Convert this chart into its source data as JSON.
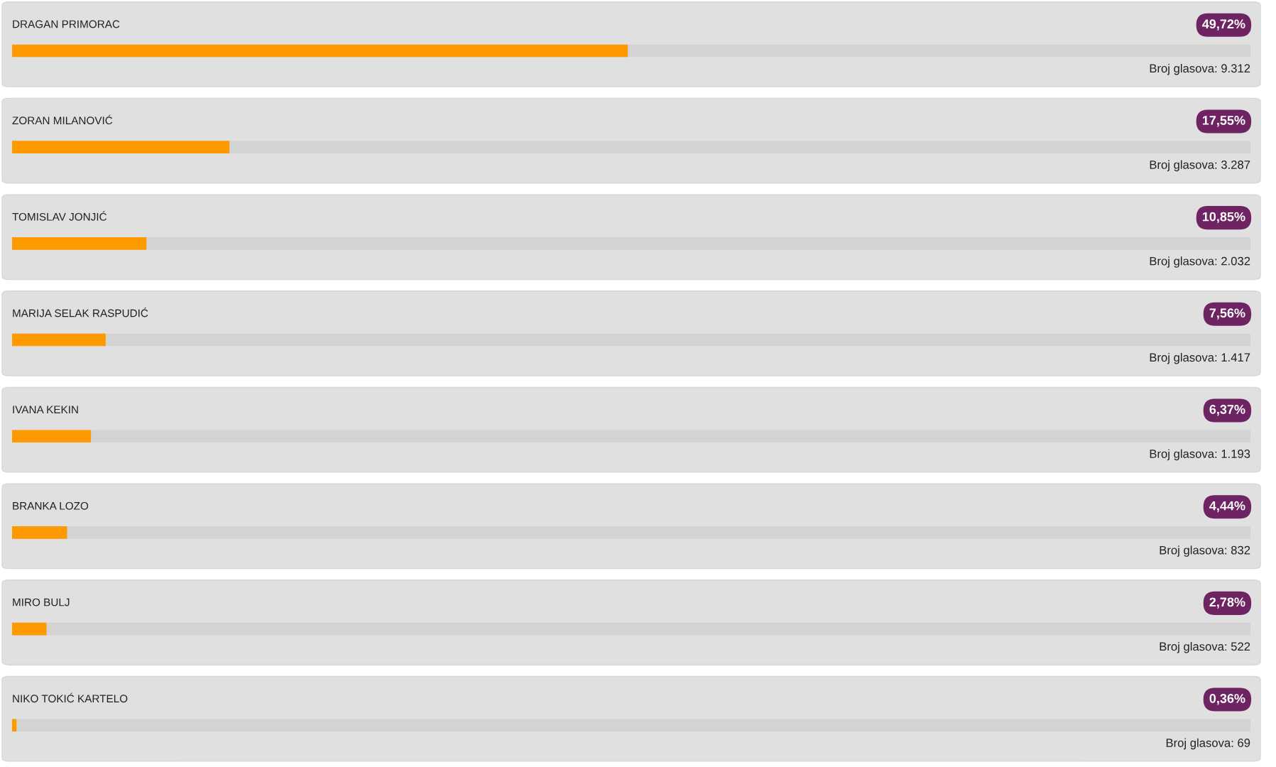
{
  "chart_data": {
    "type": "bar",
    "orientation": "horizontal",
    "categories": [
      "DRAGAN PRIMORAC",
      "ZORAN MILANOVIĆ",
      "TOMISLAV JONJIĆ",
      "MARIJA SELAK RASPUDIĆ",
      "IVANA KEKIN",
      "BRANKA LOZO",
      "MIRO BULJ",
      "NIKO TOKIĆ KARTELO"
    ],
    "values": [
      49.72,
      17.55,
      10.85,
      7.56,
      6.37,
      4.44,
      2.78,
      0.36
    ],
    "value_labels": [
      "49,72%",
      "17,55%",
      "10,85%",
      "7,56%",
      "6,37%",
      "4,44%",
      "2,78%",
      "0,36%"
    ],
    "color": "#ff9900",
    "xlim": [
      0,
      100
    ],
    "tick_labels": false,
    "legend": false,
    "annotations": [
      "Broj glasova: 9.312",
      "Broj glasova: 3.287",
      "Broj glasova: 2.032",
      "Broj glasova: 1.417",
      "Broj glasova: 1.193",
      "Broj glasova: 832",
      "Broj glasova: 522",
      "Broj glasova: 69"
    ]
  }
}
